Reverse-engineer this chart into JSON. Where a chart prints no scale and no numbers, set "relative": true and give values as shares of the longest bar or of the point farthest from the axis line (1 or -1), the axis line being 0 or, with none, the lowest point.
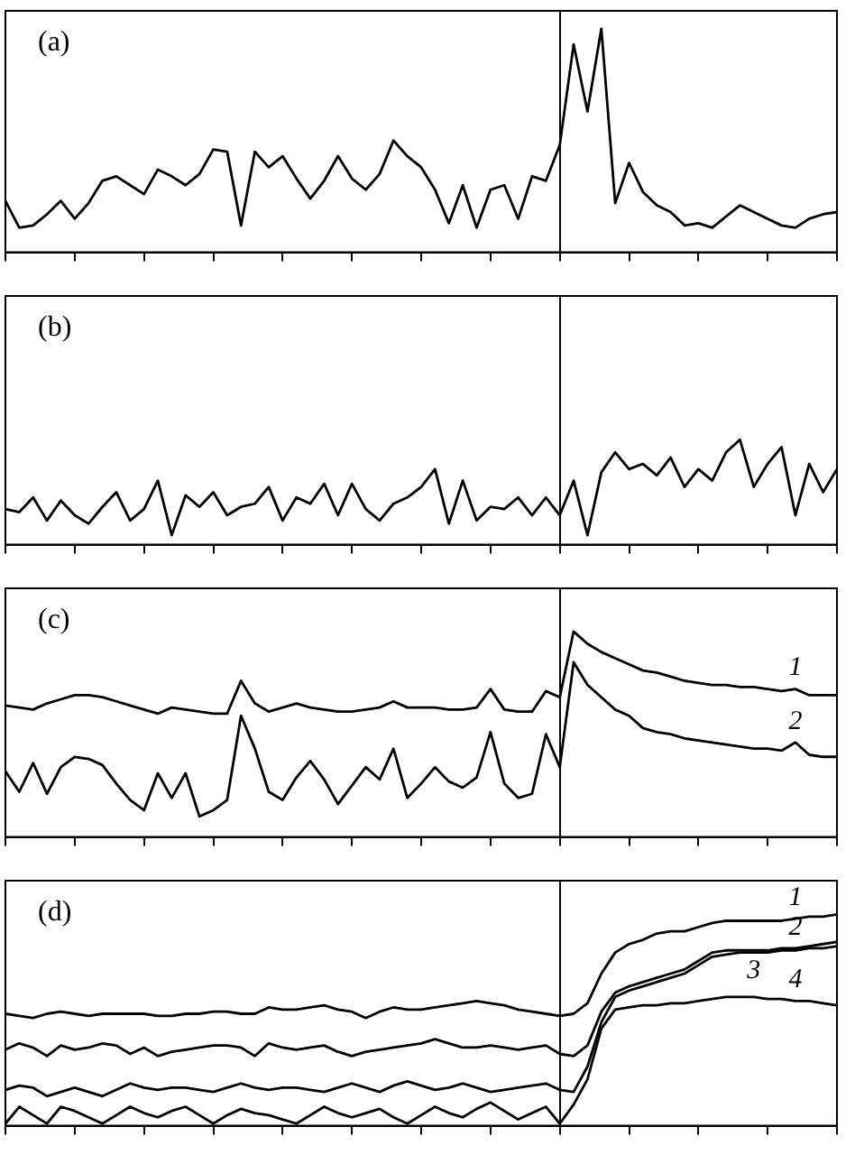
{
  "chart_data": [
    {
      "type": "line",
      "title": "(a)",
      "relative": true,
      "marker": "none",
      "categories": [
        null,
        null,
        null,
        null,
        null,
        null,
        null,
        null,
        null,
        null,
        null,
        null,
        null,
        null,
        null,
        null,
        null,
        null,
        null,
        null,
        null,
        null,
        null,
        null,
        null,
        null,
        null,
        null,
        null,
        null,
        null,
        null,
        null,
        null,
        null,
        null,
        null,
        null,
        null,
        null,
        null,
        null,
        null,
        null,
        null,
        null,
        null,
        null,
        null,
        null,
        null,
        null,
        null,
        null,
        null,
        null,
        null,
        null,
        null,
        null,
        null
      ],
      "series": [
        {
          "color": "#000000",
          "values": [
            0.23,
            0.11,
            0.12,
            0.17,
            0.23,
            0.15,
            0.22,
            0.32,
            0.34,
            0.3,
            0.26,
            0.37,
            0.34,
            0.3,
            0.35,
            0.46,
            0.45,
            0.12,
            0.45,
            0.38,
            0.43,
            0.33,
            0.24,
            0.32,
            0.43,
            0.33,
            0.28,
            0.35,
            0.5,
            0.43,
            0.38,
            0.28,
            0.13,
            0.3,
            0.11,
            0.28,
            0.3,
            0.15,
            0.34,
            0.32,
            0.48,
            0.93,
            0.63,
            1,
            0.22,
            0.4,
            0.27,
            0.21,
            0.18,
            0.12,
            0.13,
            0.11,
            0.16,
            0.21,
            0.18,
            0.15,
            0.12,
            0.11,
            0.15,
            0.17,
            0.18
          ]
        }
      ]
    },
    {
      "type": "line",
      "title": "(b)",
      "relative": true,
      "marker": "none",
      "categories": [
        null,
        null,
        null,
        null,
        null,
        null,
        null,
        null,
        null,
        null,
        null,
        null,
        null,
        null,
        null,
        null,
        null,
        null,
        null,
        null,
        null,
        null,
        null,
        null,
        null,
        null,
        null,
        null,
        null,
        null,
        null,
        null,
        null,
        null,
        null,
        null,
        null,
        null,
        null,
        null,
        null,
        null,
        null,
        null,
        null,
        null,
        null,
        null,
        null,
        null,
        null,
        null,
        null,
        null,
        null,
        null,
        null,
        null,
        null,
        null,
        null
      ],
      "series": [
        {
          "color": "#000000",
          "values": [
            0.34,
            0.31,
            0.45,
            0.23,
            0.42,
            0.28,
            0.2,
            0.36,
            0.5,
            0.23,
            0.34,
            0.61,
            0.09,
            0.47,
            0.36,
            0.5,
            0.28,
            0.36,
            0.39,
            0.55,
            0.23,
            0.45,
            0.39,
            0.58,
            0.28,
            0.58,
            0.34,
            0.23,
            0.39,
            0.45,
            0.55,
            0.72,
            0.2,
            0.61,
            0.23,
            0.36,
            0.34,
            0.45,
            0.28,
            0.45,
            0.28,
            0.61,
            0.09,
            0.69,
            0.88,
            0.72,
            0.77,
            0.66,
            0.83,
            0.55,
            0.72,
            0.61,
            0.88,
            1,
            0.55,
            0.77,
            0.93,
            0.28,
            0.77,
            0.5,
            0.72
          ]
        }
      ]
    },
    {
      "type": "line",
      "title": "(c)",
      "relative": true,
      "marker": "none",
      "categories": [
        null,
        null,
        null,
        null,
        null,
        null,
        null,
        null,
        null,
        null,
        null,
        null,
        null,
        null,
        null,
        null,
        null,
        null,
        null,
        null,
        null,
        null,
        null,
        null,
        null,
        null,
        null,
        null,
        null,
        null,
        null,
        null,
        null,
        null,
        null,
        null,
        null,
        null,
        null,
        null,
        null,
        null,
        null,
        null,
        null,
        null,
        null,
        null,
        null,
        null,
        null,
        null,
        null,
        null,
        null,
        null,
        null,
        null,
        null,
        null,
        null
      ],
      "series": [
        {
          "name": "1",
          "color": "#000000",
          "values": [
            0.64,
            0.63,
            0.62,
            0.65,
            0.67,
            0.69,
            0.69,
            0.68,
            0.66,
            0.64,
            0.62,
            0.6,
            0.63,
            0.62,
            0.61,
            0.6,
            0.6,
            0.76,
            0.65,
            0.61,
            0.63,
            0.65,
            0.63,
            0.62,
            0.61,
            0.61,
            0.62,
            0.63,
            0.66,
            0.63,
            0.63,
            0.63,
            0.62,
            0.62,
            0.63,
            0.72,
            0.62,
            0.61,
            0.61,
            0.71,
            0.68,
            1,
            0.94,
            0.9,
            0.87,
            0.84,
            0.81,
            0.8,
            0.78,
            0.76,
            0.75,
            0.74,
            0.74,
            0.73,
            0.73,
            0.72,
            0.71,
            0.72,
            0.69,
            0.69,
            0.69
          ]
        },
        {
          "name": "2",
          "color": "#000000",
          "values": [
            0.32,
            0.22,
            0.36,
            0.21,
            0.34,
            0.39,
            0.38,
            0.35,
            0.26,
            0.18,
            0.13,
            0.31,
            0.19,
            0.31,
            0.1,
            0.13,
            0.18,
            0.59,
            0.43,
            0.22,
            0.18,
            0.29,
            0.37,
            0.28,
            0.16,
            0.25,
            0.34,
            0.28,
            0.43,
            0.19,
            0.26,
            0.34,
            0.27,
            0.24,
            0.29,
            0.51,
            0.26,
            0.19,
            0.21,
            0.5,
            0.34,
            0.85,
            0.74,
            0.68,
            0.62,
            0.59,
            0.53,
            0.51,
            0.5,
            0.48,
            0.47,
            0.46,
            0.45,
            0.44,
            0.43,
            0.43,
            0.42,
            0.46,
            0.4,
            0.39,
            0.39
          ]
        }
      ]
    },
    {
      "type": "line",
      "title": "(d)",
      "relative": true,
      "marker": "none",
      "categories": [
        null,
        null,
        null,
        null,
        null,
        null,
        null,
        null,
        null,
        null,
        null,
        null,
        null,
        null,
        null,
        null,
        null,
        null,
        null,
        null,
        null,
        null,
        null,
        null,
        null,
        null,
        null,
        null,
        null,
        null,
        null,
        null,
        null,
        null,
        null,
        null,
        null,
        null,
        null,
        null,
        null,
        null,
        null,
        null,
        null,
        null,
        null,
        null,
        null,
        null,
        null,
        null,
        null,
        null,
        null,
        null,
        null,
        null,
        null,
        null,
        null
      ],
      "series": [
        {
          "name": "1",
          "color": "#000000",
          "values": [
            0.53,
            0.52,
            0.51,
            0.53,
            0.54,
            0.53,
            0.52,
            0.53,
            0.53,
            0.53,
            0.53,
            0.52,
            0.52,
            0.53,
            0.53,
            0.54,
            0.54,
            0.53,
            0.53,
            0.56,
            0.55,
            0.55,
            0.56,
            0.57,
            0.55,
            0.54,
            0.51,
            0.54,
            0.56,
            0.55,
            0.55,
            0.56,
            0.57,
            0.58,
            0.59,
            0.58,
            0.57,
            0.55,
            0.54,
            0.53,
            0.52,
            0.53,
            0.58,
            0.72,
            0.82,
            0.86,
            0.88,
            0.91,
            0.92,
            0.92,
            0.94,
            0.96,
            0.97,
            0.97,
            0.97,
            0.97,
            0.97,
            0.98,
            0.99,
            0.99,
            1
          ]
        },
        {
          "name": "2",
          "color": "#000000",
          "values": [
            0.36,
            0.39,
            0.37,
            0.33,
            0.38,
            0.36,
            0.37,
            0.39,
            0.38,
            0.34,
            0.37,
            0.33,
            0.35,
            0.36,
            0.37,
            0.38,
            0.38,
            0.37,
            0.33,
            0.39,
            0.37,
            0.36,
            0.37,
            0.38,
            0.35,
            0.33,
            0.35,
            0.36,
            0.37,
            0.38,
            0.39,
            0.41,
            0.39,
            0.37,
            0.37,
            0.38,
            0.37,
            0.36,
            0.37,
            0.38,
            0.34,
            0.33,
            0.38,
            0.54,
            0.63,
            0.66,
            0.68,
            0.7,
            0.72,
            0.74,
            0.78,
            0.82,
            0.83,
            0.83,
            0.83,
            0.83,
            0.84,
            0.84,
            0.85,
            0.86,
            0.87
          ]
        },
        {
          "name": "3",
          "color": "#000000",
          "values": [
            0.17,
            0.19,
            0.18,
            0.14,
            0.16,
            0.18,
            0.16,
            0.14,
            0.17,
            0.2,
            0.18,
            0.17,
            0.18,
            0.18,
            0.17,
            0.16,
            0.18,
            0.2,
            0.18,
            0.17,
            0.18,
            0.18,
            0.17,
            0.16,
            0.18,
            0.2,
            0.18,
            0.16,
            0.19,
            0.21,
            0.19,
            0.17,
            0.18,
            0.2,
            0.18,
            0.16,
            0.17,
            0.18,
            0.19,
            0.2,
            0.17,
            0.16,
            0.28,
            0.49,
            0.61,
            0.64,
            0.66,
            0.68,
            0.7,
            0.72,
            0.76,
            0.8,
            0.81,
            0.82,
            0.82,
            0.82,
            0.83,
            0.83,
            0.84,
            0.84,
            0.85
          ]
        },
        {
          "name": "4",
          "color": "#000000",
          "values": [
            0.01,
            0.09,
            0.05,
            0.01,
            0.09,
            0.07,
            0.04,
            0.01,
            0.05,
            0.09,
            0.06,
            0.04,
            0.07,
            0.09,
            0.05,
            0.01,
            0.05,
            0.08,
            0.06,
            0.05,
            0.03,
            0.01,
            0.05,
            0.09,
            0.06,
            0.04,
            0.06,
            0.08,
            0.04,
            0.01,
            0.05,
            0.09,
            0.06,
            0.04,
            0.08,
            0.11,
            0.07,
            0.03,
            0.06,
            0.09,
            0.01,
            0.1,
            0.22,
            0.46,
            0.55,
            0.56,
            0.57,
            0.57,
            0.58,
            0.58,
            0.59,
            0.6,
            0.61,
            0.61,
            0.61,
            0.6,
            0.6,
            0.59,
            0.59,
            0.58,
            0.57
          ]
        }
      ]
    }
  ]
}
